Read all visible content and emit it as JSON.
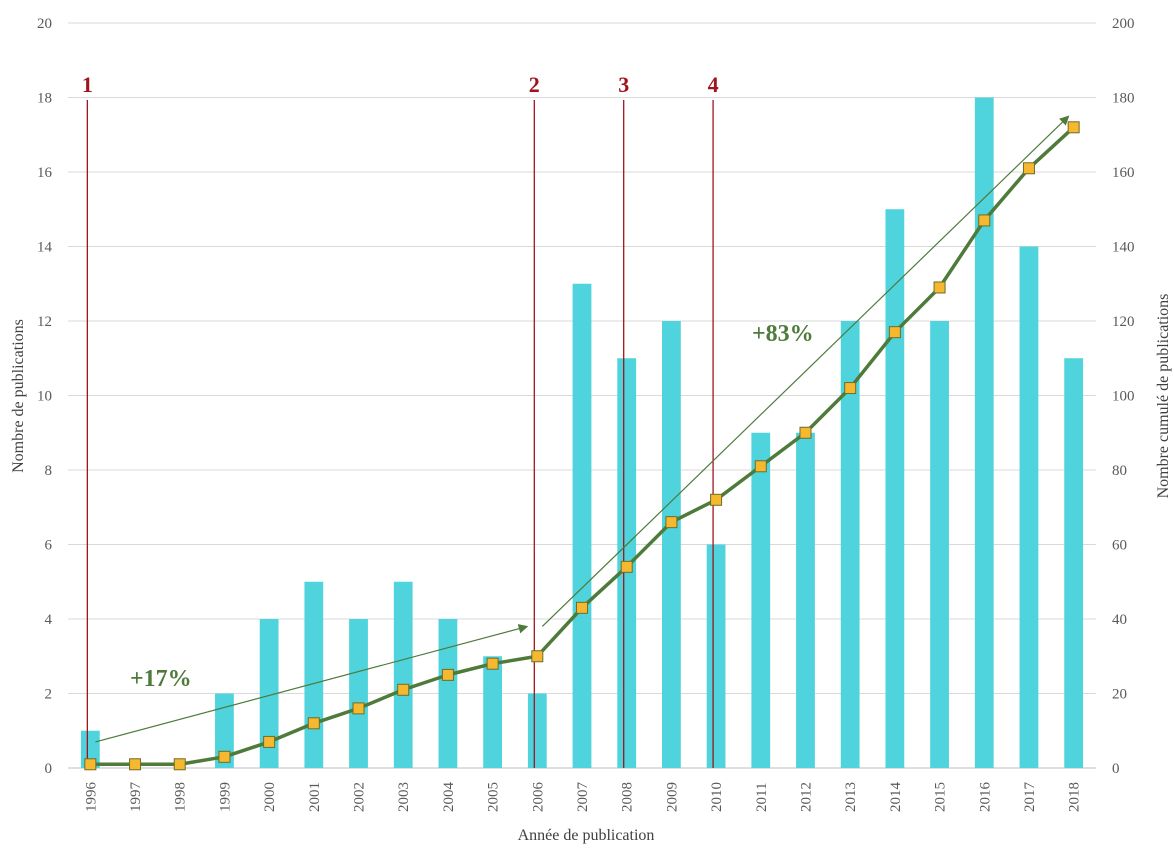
{
  "chart_data": {
    "type": "bar",
    "categories": [
      "1996",
      "1997",
      "1998",
      "1999",
      "2000",
      "2001",
      "2002",
      "2003",
      "2004",
      "2005",
      "2006",
      "2007",
      "2008",
      "2009",
      "2010",
      "2011",
      "2012",
      "2013",
      "2014",
      "2015",
      "2016",
      "2017",
      "2018"
    ],
    "series": [
      {
        "type": "bar",
        "axis": "left",
        "color": "#4fd3dc",
        "values": [
          1,
          0,
          0,
          2,
          4,
          5,
          4,
          5,
          4,
          3,
          2,
          13,
          11,
          12,
          6,
          9,
          9,
          12,
          15,
          12,
          18,
          14,
          11
        ]
      },
      {
        "type": "line",
        "axis": "right",
        "color": "#4e7a3a",
        "marker_color": "#f5b82e",
        "values": [
          1,
          1,
          1,
          3,
          7,
          12,
          16,
          21,
          25,
          28,
          30,
          43,
          54,
          66,
          72,
          81,
          90,
          102,
          117,
          129,
          147,
          161,
          172
        ]
      }
    ],
    "xlabel": "Année de publication",
    "ylabel": "Nombre de publications",
    "y2label": "Nombre cumulé de publications",
    "ylim": [
      0,
      20
    ],
    "y2lim": [
      0,
      200
    ],
    "yticks": [
      "0",
      "2",
      "4",
      "6",
      "8",
      "10",
      "12",
      "14",
      "16",
      "18",
      "20"
    ],
    "y2ticks": [
      "0",
      "20",
      "40",
      "60",
      "80",
      "100",
      "120",
      "140",
      "160",
      "180",
      "200"
    ],
    "grid": true,
    "legend": "none",
    "vertical_markers": [
      {
        "label": "1",
        "year": "1996",
        "color": "#a0141e"
      },
      {
        "label": "2",
        "year": "2006",
        "color": "#a0141e"
      },
      {
        "label": "3",
        "year": "2008",
        "color": "#a0141e"
      },
      {
        "label": "4",
        "year": "2010",
        "color": "#a0141e"
      }
    ],
    "trend_arrows": [
      {
        "label": "+17%",
        "from_year": "1996",
        "from_y2": 7,
        "to_year": "2006",
        "to_y2": 38,
        "color": "#4e7a3a"
      },
      {
        "label": "+83%",
        "from_year": "2006",
        "from_y2": 38,
        "to_year": "2018",
        "to_y2": 175,
        "color": "#4e7a3a"
      }
    ]
  }
}
